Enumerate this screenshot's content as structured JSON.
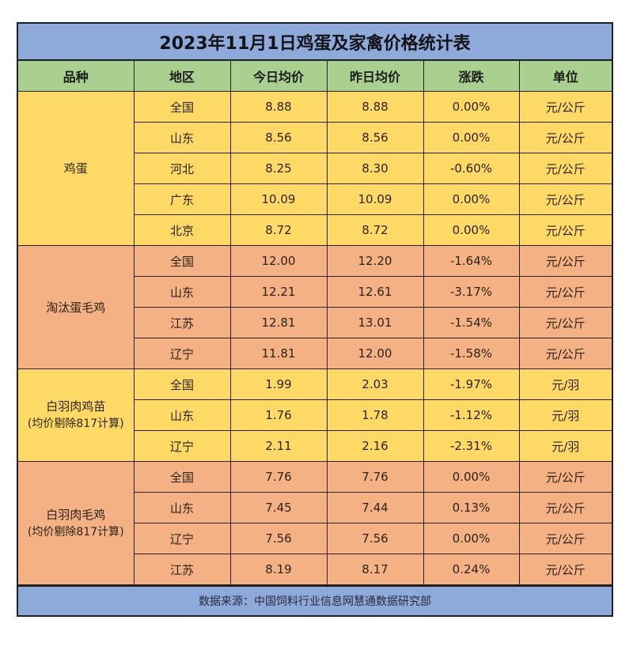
{
  "title": "2023年11月1日鸡蛋及家禽价格统计表",
  "headers": [
    "品种",
    "地区",
    "今日均价",
    "昨日均价",
    "涨跌",
    "单位"
  ],
  "colors": {
    "title_bg": "#8eaadb",
    "header_bg": "#a9d08e",
    "yellow_group": "#ffd966",
    "orange_group": "#f4b183",
    "footer_bg": "#8eaadb"
  },
  "groups": [
    {
      "category": "鸡蛋",
      "note": "",
      "rows": [
        {
          "region": "全国",
          "today": "8.88",
          "yesterday": "8.88",
          "change": "0.00%",
          "unit": "元/公斤"
        },
        {
          "region": "山东",
          "today": "8.56",
          "yesterday": "8.56",
          "change": "0.00%",
          "unit": "元/公斤"
        },
        {
          "region": "河北",
          "today": "8.25",
          "yesterday": "8.30",
          "change": "-0.60%",
          "unit": "元/公斤"
        },
        {
          "region": "广东",
          "today": "10.09",
          "yesterday": "10.09",
          "change": "0.00%",
          "unit": "元/公斤"
        },
        {
          "region": "北京",
          "today": "8.72",
          "yesterday": "8.72",
          "change": "0.00%",
          "unit": "元/公斤"
        }
      ]
    },
    {
      "category": "淘汰蛋毛鸡",
      "note": "",
      "rows": [
        {
          "region": "全国",
          "today": "12.00",
          "yesterday": "12.20",
          "change": "-1.64%",
          "unit": "元/公斤"
        },
        {
          "region": "山东",
          "today": "12.21",
          "yesterday": "12.61",
          "change": "-3.17%",
          "unit": "元/公斤"
        },
        {
          "region": "江苏",
          "today": "12.81",
          "yesterday": "13.01",
          "change": "-1.54%",
          "unit": "元/公斤"
        },
        {
          "region": "辽宁",
          "today": "11.81",
          "yesterday": "12.00",
          "change": "-1.58%",
          "unit": "元/公斤"
        }
      ]
    },
    {
      "category": "白羽肉鸡苗",
      "note": "(均价剔除817计算)",
      "rows": [
        {
          "region": "全国",
          "today": "1.99",
          "yesterday": "2.03",
          "change": "-1.97%",
          "unit": "元/羽"
        },
        {
          "region": "山东",
          "today": "1.76",
          "yesterday": "1.78",
          "change": "-1.12%",
          "unit": "元/羽"
        },
        {
          "region": "辽宁",
          "today": "2.11",
          "yesterday": "2.16",
          "change": "-2.31%",
          "unit": "元/羽"
        }
      ]
    },
    {
      "category": "白羽肉毛鸡",
      "note": "(均价剔除817计算)",
      "rows": [
        {
          "region": "全国",
          "today": "7.76",
          "yesterday": "7.76",
          "change": "0.00%",
          "unit": "元/公斤"
        },
        {
          "region": "山东",
          "today": "7.45",
          "yesterday": "7.44",
          "change": "0.13%",
          "unit": "元/公斤"
        },
        {
          "region": "辽宁",
          "today": "7.56",
          "yesterday": "7.56",
          "change": "0.00%",
          "unit": "元/公斤"
        },
        {
          "region": "江苏",
          "today": "8.19",
          "yesterday": "8.17",
          "change": "0.24%",
          "unit": "元/公斤"
        }
      ]
    }
  ],
  "footer": "数据来源：中国饲料行业信息网慧通数据研究部"
}
